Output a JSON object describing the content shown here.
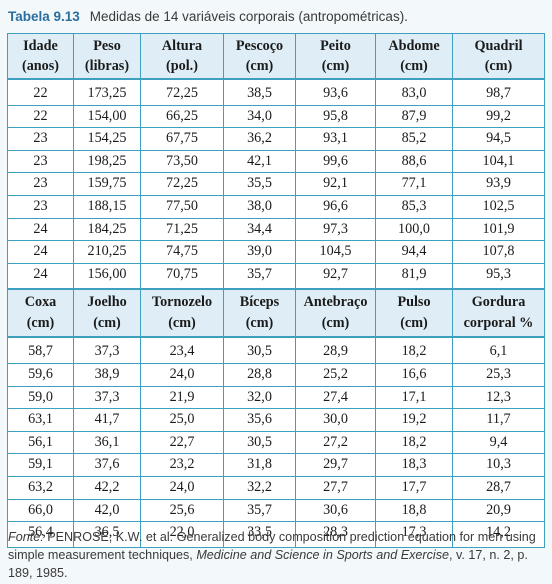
{
  "caption": {
    "label": "Tabela 9.13",
    "text": "Medidas de 14 variáveis corporais (antropométricas)."
  },
  "table1": {
    "headers": [
      [
        "Idade",
        "(anos)"
      ],
      [
        "Peso",
        "(libras)"
      ],
      [
        "Altura",
        "(pol.)"
      ],
      [
        "Pescoço",
        "(cm)"
      ],
      [
        "Peito",
        "(cm)"
      ],
      [
        "Abdome",
        "(cm)"
      ],
      [
        "Quadril",
        "(cm)"
      ]
    ],
    "rows": [
      [
        "22",
        "173,25",
        "72,25",
        "38,5",
        "93,6",
        "83,0",
        "98,7"
      ],
      [
        "22",
        "154,00",
        "66,25",
        "34,0",
        "95,8",
        "87,9",
        "99,2"
      ],
      [
        "23",
        "154,25",
        "67,75",
        "36,2",
        "93,1",
        "85,2",
        "94,5"
      ],
      [
        "23",
        "198,25",
        "73,50",
        "42,1",
        "99,6",
        "88,6",
        "104,1"
      ],
      [
        "23",
        "159,75",
        "72,25",
        "35,5",
        "92,1",
        "77,1",
        "93,9"
      ],
      [
        "23",
        "188,15",
        "77,50",
        "38,0",
        "96,6",
        "85,3",
        "102,5"
      ],
      [
        "24",
        "184,25",
        "71,25",
        "34,4",
        "97,3",
        "100,0",
        "101,9"
      ],
      [
        "24",
        "210,25",
        "74,75",
        "39,0",
        "104,5",
        "94,4",
        "107,8"
      ],
      [
        "24",
        "156,00",
        "70,75",
        "35,7",
        "92,7",
        "81,9",
        "95,3"
      ]
    ]
  },
  "table2": {
    "headers": [
      [
        "Coxa",
        "(cm)"
      ],
      [
        "Joelho",
        "(cm)"
      ],
      [
        "Tornozelo",
        "(cm)"
      ],
      [
        "Bíceps",
        "(cm)"
      ],
      [
        "Antebraço",
        "(cm)"
      ],
      [
        "Pulso",
        "(cm)"
      ],
      [
        "Gordura",
        "corporal %"
      ]
    ],
    "rows": [
      [
        "58,7",
        "37,3",
        "23,4",
        "30,5",
        "28,9",
        "18,2",
        "6,1"
      ],
      [
        "59,6",
        "38,9",
        "24,0",
        "28,8",
        "25,2",
        "16,6",
        "25,3"
      ],
      [
        "59,0",
        "37,3",
        "21,9",
        "32,0",
        "27,4",
        "17,1",
        "12,3"
      ],
      [
        "63,1",
        "41,7",
        "25,0",
        "35,6",
        "30,0",
        "19,2",
        "11,7"
      ],
      [
        "56,1",
        "36,1",
        "22,7",
        "30,5",
        "27,2",
        "18,2",
        "9,4"
      ],
      [
        "59,1",
        "37,6",
        "23,2",
        "31,8",
        "29,7",
        "18,3",
        "10,3"
      ],
      [
        "63,2",
        "42,2",
        "24,0",
        "32,2",
        "27,7",
        "17,7",
        "28,7"
      ],
      [
        "66,0",
        "42,0",
        "25,6",
        "35,7",
        "30,6",
        "18,8",
        "20,9"
      ],
      [
        "56,4",
        "36,5",
        "22,0",
        "33,5",
        "28,3",
        "17,3",
        "14,2"
      ]
    ]
  },
  "source": {
    "prefix": "Fonte:",
    "authors": "PENROSE, K.W. et al. Generalized body composition prediction equation for men using simple measurement techniques,",
    "journal": "Medicine and Science in Sports and Exercise",
    "details": ", v. 17, n. 2, p. 189, 1985."
  }
}
